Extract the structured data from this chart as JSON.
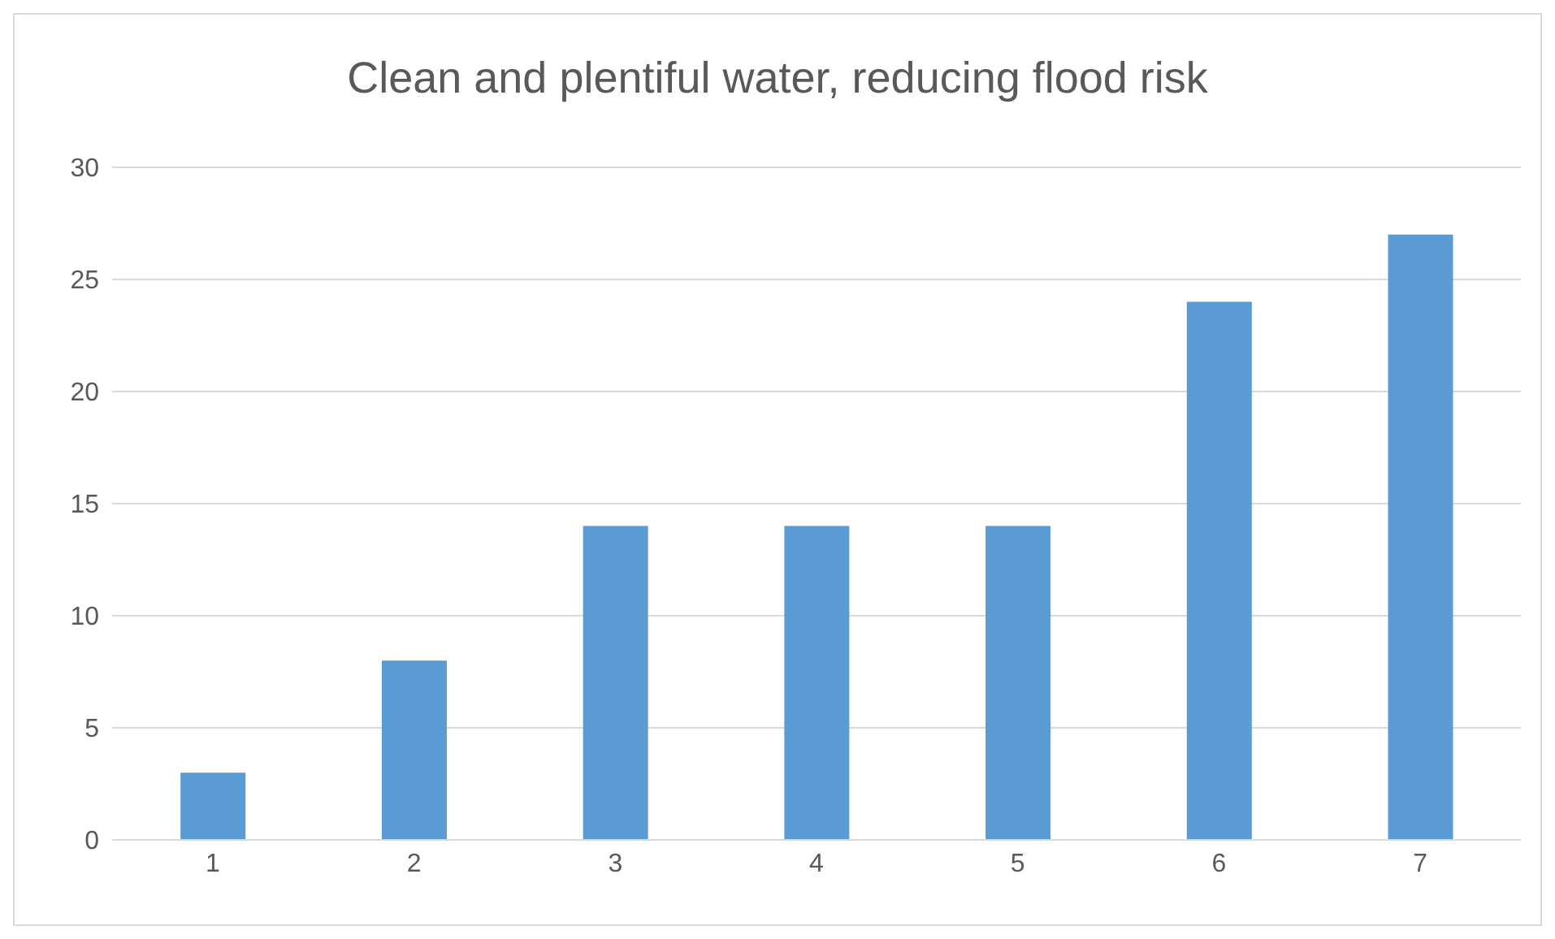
{
  "chart_data": {
    "type": "bar",
    "title": "Clean and plentiful water, reducing flood risk",
    "categories": [
      "1",
      "2",
      "3",
      "4",
      "5",
      "6",
      "7"
    ],
    "values": [
      3,
      8,
      14,
      14,
      14,
      24,
      27
    ],
    "color": "#5b9bd5",
    "ylim": [
      0,
      30
    ],
    "yticks": [
      0,
      5,
      10,
      15,
      20,
      25,
      30
    ],
    "grid": "y"
  }
}
